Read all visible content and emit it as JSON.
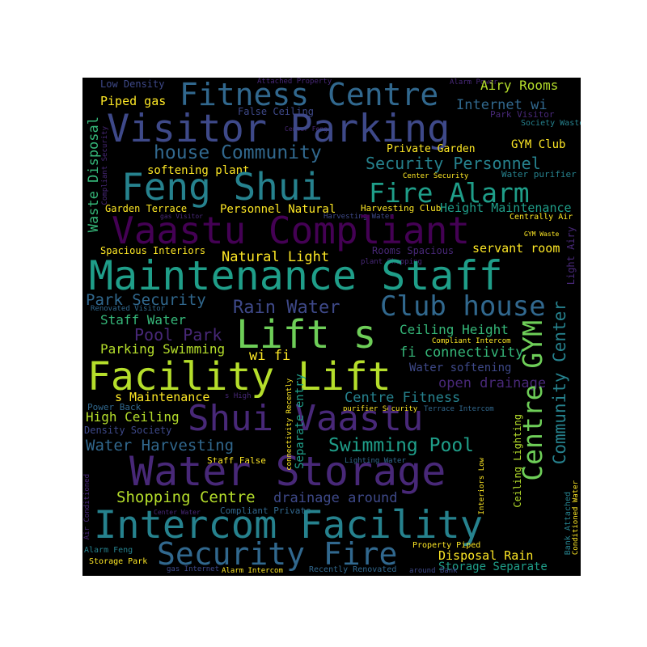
{
  "palette": {
    "yellow": "#fde725",
    "lime": "#b5de2b",
    "lgreen": "#6ece58",
    "green": "#35b779",
    "teal": "#1f9e89",
    "dteal": "#26828e",
    "blue": "#31688e",
    "dblue": "#3e4989",
    "indigo": "#482878",
    "purple": "#440154"
  },
  "words": [
    {
      "t": "Low Density",
      "c": "dblue"
    },
    {
      "t": "Attached Property",
      "c": "indigo"
    },
    {
      "t": "Alarm Power",
      "c": "indigo"
    },
    {
      "t": "Fitness Centre",
      "c": "blue"
    },
    {
      "t": "Airy Rooms",
      "c": "lime"
    },
    {
      "t": "Piped gas",
      "c": "yellow"
    },
    {
      "t": "Internet wi",
      "c": "blue"
    },
    {
      "t": "False Ceiling",
      "c": "dblue"
    },
    {
      "t": "Park Visitor",
      "c": "indigo"
    },
    {
      "t": "Center Feng",
      "c": "indigo"
    },
    {
      "t": "Society Waste",
      "c": "dteal"
    },
    {
      "t": "Visitor Parking",
      "c": "dblue"
    },
    {
      "t": "GYM Club",
      "c": "yellow"
    },
    {
      "t": "Private Garden",
      "c": "yellow"
    },
    {
      "t": "house Community",
      "c": "blue"
    },
    {
      "t": "Security Personnel",
      "c": "dteal"
    },
    {
      "t": "softening plant",
      "c": "yellow"
    },
    {
      "t": "Center Security",
      "c": "yellow"
    },
    {
      "t": "Water purifier",
      "c": "dteal"
    },
    {
      "t": "Feng Shui",
      "c": "dteal"
    },
    {
      "t": "Fire Alarm",
      "c": "teal"
    },
    {
      "t": "Garden Terrace",
      "c": "yellow"
    },
    {
      "t": "Personnel Natural",
      "c": "yellow"
    },
    {
      "t": "Harvesting Club",
      "c": "yellow"
    },
    {
      "t": "Height Maintenance",
      "c": "teal"
    },
    {
      "t": "gas Visitor",
      "c": "indigo"
    },
    {
      "t": "Harvesting Water",
      "c": "dblue"
    },
    {
      "t": "Centrally Air",
      "c": "yellow"
    },
    {
      "t": "Vaastu Compliant",
      "c": "purple"
    },
    {
      "t": "GYM Waste",
      "c": "yellow"
    },
    {
      "t": "Spacious Interiors",
      "c": "yellow"
    },
    {
      "t": "Natural Light",
      "c": "yellow"
    },
    {
      "t": "Rooms Spacious",
      "c": "indigo"
    },
    {
      "t": "servant room",
      "c": "yellow"
    },
    {
      "t": "plant Shopping",
      "c": "indigo"
    },
    {
      "t": "Maintenance Staff",
      "c": "teal"
    },
    {
      "t": "Park Security",
      "c": "blue"
    },
    {
      "t": "Rain Water",
      "c": "dblue"
    },
    {
      "t": "Club house",
      "c": "blue"
    },
    {
      "t": "Renovated Visitor",
      "c": "blue"
    },
    {
      "t": "Staff Water",
      "c": "green"
    },
    {
      "t": "Pool Park",
      "c": "indigo"
    },
    {
      "t": "Lift s",
      "c": "lgreen"
    },
    {
      "t": "Ceiling Height",
      "c": "green"
    },
    {
      "t": "Compliant Intercom",
      "c": "yellow"
    },
    {
      "t": "Parking Swimming",
      "c": "lime"
    },
    {
      "t": "wi fi",
      "c": "yellow"
    },
    {
      "t": "fi connectivity",
      "c": "green"
    },
    {
      "t": "Facility Lift",
      "c": "lime"
    },
    {
      "t": "Water softening",
      "c": "dblue"
    },
    {
      "t": "open drainage",
      "c": "indigo"
    },
    {
      "t": "s Maintenance",
      "c": "yellow"
    },
    {
      "t": "s High",
      "c": "indigo"
    },
    {
      "t": "Power Back",
      "c": "blue"
    },
    {
      "t": "Centre Fitness",
      "c": "dteal"
    },
    {
      "t": "purifier Security",
      "c": "yellow"
    },
    {
      "t": "Terrace Intercom",
      "c": "blue"
    },
    {
      "t": "High Ceiling",
      "c": "lime"
    },
    {
      "t": "Shui Vaastu",
      "c": "indigo"
    },
    {
      "t": "Density Society",
      "c": "dblue"
    },
    {
      "t": "Water Harvesting",
      "c": "blue"
    },
    {
      "t": "Swimming Pool",
      "c": "teal"
    },
    {
      "t": "Staff False",
      "c": "yellow"
    },
    {
      "t": "Lighting Water",
      "c": "blue"
    },
    {
      "t": "Water Storage",
      "c": "indigo"
    },
    {
      "t": "Shopping Centre",
      "c": "lime"
    },
    {
      "t": "drainage around",
      "c": "dblue"
    },
    {
      "t": "Center Water",
      "c": "indigo"
    },
    {
      "t": "Compliant Private",
      "c": "blue"
    },
    {
      "t": "Intercom Facility",
      "c": "dteal"
    },
    {
      "t": "Alarm Feng",
      "c": "dteal"
    },
    {
      "t": "Property Piped",
      "c": "yellow"
    },
    {
      "t": "Storage Park",
      "c": "yellow"
    },
    {
      "t": "Security Fire",
      "c": "blue"
    },
    {
      "t": "Disposal Rain",
      "c": "yellow"
    },
    {
      "t": "Storage Separate",
      "c": "teal"
    },
    {
      "t": "gas Internet",
      "c": "dblue"
    },
    {
      "t": "Alarm Intercom",
      "c": "yellow"
    },
    {
      "t": "Recently Renovated",
      "c": "blue"
    },
    {
      "t": "around Bank",
      "c": "dblue"
    },
    {
      "t": "Waste Disposal",
      "c": "green"
    },
    {
      "t": "Compliant Security",
      "c": "indigo"
    },
    {
      "t": "Air Conditioned",
      "c": "indigo"
    },
    {
      "t": "connectivity Recently",
      "c": "yellow"
    },
    {
      "t": "Separate entry",
      "c": "teal"
    },
    {
      "t": "Ceiling Lighting",
      "c": "lime"
    },
    {
      "t": "Interiors Low",
      "c": "yellow"
    },
    {
      "t": "Bank Attached",
      "c": "dteal"
    },
    {
      "t": "Conditioned Water",
      "c": "yellow"
    },
    {
      "t": "Light Airy",
      "c": "indigo"
    },
    {
      "t": "Centre GYM",
      "c": "lgreen"
    },
    {
      "t": "Community Center",
      "c": "dteal"
    }
  ]
}
